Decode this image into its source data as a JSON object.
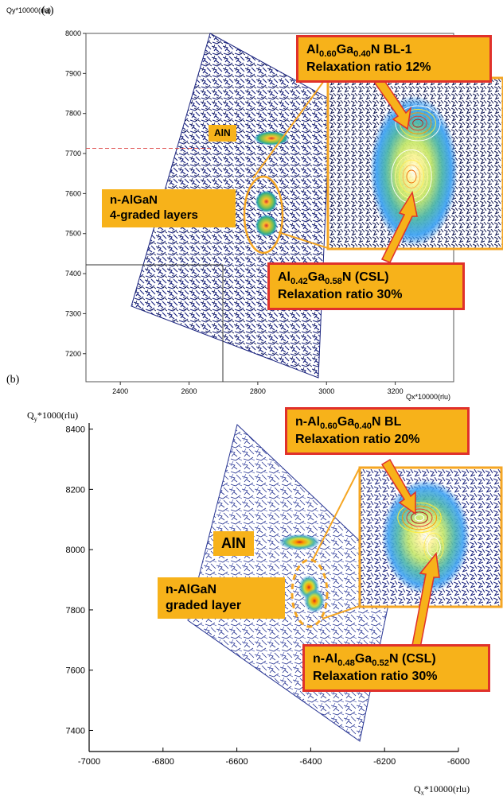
{
  "panels": {
    "a": {
      "label": "(a)"
    },
    "b": {
      "label": "(b)"
    }
  },
  "annotations_a": {
    "aln": "AlN",
    "nalgan_line1": "n-AlGaN",
    "nalgan_line2": "4-graded layers",
    "bl_prefix": "Al",
    "bl_sub1": "0.60",
    "bl_mid": "Ga",
    "bl_sub2": "0.40",
    "bl_suffix": "N BL-1",
    "bl_relax": "Relaxation ratio 12%",
    "csl_prefix": "Al",
    "csl_sub1": "0.42",
    "csl_mid": "Ga",
    "csl_sub2": "0.58",
    "csl_suffix": "N (CSL)",
    "csl_relax": "Relaxation ratio 30%"
  },
  "annotations_b": {
    "aln": "AlN",
    "nalgan_line1": "n-AlGaN",
    "nalgan_line2": "graded layer",
    "bl_prefix": "n-Al",
    "bl_sub1": "0.60",
    "bl_mid": "Ga",
    "bl_sub2": "0.40",
    "bl_suffix": "N BL",
    "bl_relax": "Relaxation ratio 20%",
    "csl_prefix": "n-Al",
    "csl_sub1": "0.48",
    "csl_mid": "Ga",
    "csl_sub2": "0.52",
    "csl_suffix": "N (CSL)",
    "csl_relax": "Relaxation ratio 30%"
  },
  "colors": {
    "box_fill": "#f7b21a",
    "box_border": "#e0312b",
    "scatter": "#1a237e",
    "reference_line": "#e05050",
    "highlight": "#f5a623"
  },
  "chart_data": [
    {
      "type": "heatmap",
      "panel": "a",
      "xlabel": "Qx*10000(rlu)",
      "ylabel": "Qy*10000(rlu)",
      "xlim": [
        2300,
        3370
      ],
      "ylim": [
        7130,
        8000
      ],
      "xticks": [
        2400,
        2600,
        2800,
        3000,
        3200
      ],
      "yticks": [
        7200,
        7300,
        7400,
        7500,
        7600,
        7700,
        7800,
        7900,
        8000
      ],
      "peaks": [
        {
          "name": "AlN",
          "x": 2840,
          "y": 7738
        },
        {
          "name": "Al0.60Ga0.40N BL-1",
          "x": 2825,
          "y": 7580
        },
        {
          "name": "Al0.42Ga0.58N (CSL)",
          "x": 2825,
          "y": 7520
        }
      ],
      "reference_y": 7713
    },
    {
      "type": "heatmap",
      "panel": "b",
      "xlabel_q": "Q",
      "xlabel_sub": "x",
      "xlabel_unit": "*10000(rlu)",
      "ylabel_q": "Q",
      "ylabel_sub": "y",
      "ylabel_unit": "*1000(rlu)",
      "xlim": [
        -7000,
        -6000
      ],
      "ylim": [
        7330,
        8420
      ],
      "xticks": [
        -7000,
        -6800,
        -6600,
        -6400,
        -6200,
        -6000
      ],
      "yticks": [
        7400,
        7600,
        7800,
        8000,
        8200,
        8400
      ],
      "peaks": [
        {
          "name": "AlN",
          "x": -6430,
          "y": 8025
        },
        {
          "name": "n-Al0.60Ga0.40N BL",
          "x": -6405,
          "y": 7875
        },
        {
          "name": "n-Al0.48Ga0.52N (CSL)",
          "x": -6390,
          "y": 7830
        }
      ]
    }
  ]
}
